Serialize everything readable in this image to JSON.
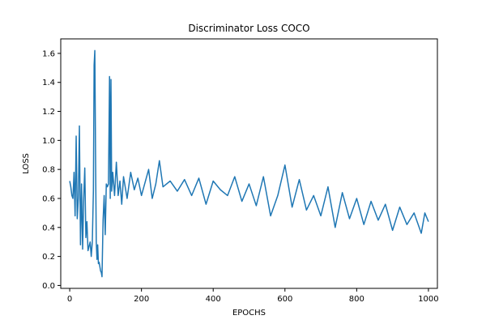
{
  "chart_data": {
    "type": "line",
    "title": "Discriminator Loss COCO",
    "xlabel": "EPOCHS",
    "ylabel": "LOSS",
    "xlim": [
      -25,
      1025
    ],
    "ylim": [
      -0.02,
      1.7
    ],
    "xticks": [
      0,
      200,
      400,
      600,
      800,
      1000
    ],
    "yticks": [
      0.0,
      0.2,
      0.4,
      0.6,
      0.8,
      1.0,
      1.2,
      1.4,
      1.6
    ],
    "ytick_labels": [
      "0.0",
      "0.2",
      "0.4",
      "0.6",
      "0.8",
      "1.0",
      "1.2",
      "1.4",
      "1.6"
    ],
    "grid": false,
    "series": [
      {
        "color": "#1f77b4",
        "x": [
          0,
          3,
          6,
          9,
          12,
          15,
          18,
          21,
          24,
          27,
          30,
          33,
          36,
          39,
          42,
          45,
          48,
          51,
          54,
          57,
          60,
          63,
          66,
          68,
          70,
          72,
          74,
          76,
          78,
          80,
          82,
          84,
          86,
          88,
          90,
          93,
          96,
          99,
          102,
          105,
          108,
          111,
          113,
          115,
          117,
          120,
          125,
          130,
          135,
          140,
          145,
          150,
          160,
          170,
          180,
          190,
          200,
          210,
          220,
          230,
          240,
          250,
          260,
          280,
          300,
          320,
          340,
          360,
          380,
          400,
          420,
          440,
          460,
          480,
          500,
          520,
          540,
          560,
          580,
          600,
          620,
          640,
          660,
          680,
          700,
          720,
          740,
          760,
          780,
          800,
          820,
          840,
          860,
          880,
          900,
          920,
          940,
          960,
          980,
          990,
          1000
        ],
        "y": [
          0.72,
          0.68,
          0.62,
          0.6,
          0.78,
          0.48,
          1.03,
          0.46,
          0.6,
          1.1,
          0.28,
          0.7,
          0.25,
          0.6,
          0.81,
          0.33,
          0.44,
          0.24,
          0.27,
          0.3,
          0.2,
          0.3,
          0.65,
          1.52,
          1.62,
          0.9,
          0.3,
          0.18,
          0.28,
          0.15,
          0.16,
          0.13,
          0.1,
          0.09,
          0.06,
          0.45,
          0.62,
          0.35,
          0.7,
          0.68,
          0.7,
          1.44,
          0.6,
          1.42,
          0.65,
          0.78,
          0.62,
          0.85,
          0.62,
          0.72,
          0.56,
          0.75,
          0.6,
          0.78,
          0.66,
          0.74,
          0.62,
          0.71,
          0.8,
          0.6,
          0.7,
          0.86,
          0.68,
          0.72,
          0.65,
          0.73,
          0.62,
          0.74,
          0.56,
          0.72,
          0.66,
          0.62,
          0.75,
          0.58,
          0.7,
          0.55,
          0.75,
          0.48,
          0.62,
          0.83,
          0.54,
          0.73,
          0.52,
          0.62,
          0.48,
          0.68,
          0.4,
          0.64,
          0.46,
          0.6,
          0.42,
          0.58,
          0.45,
          0.56,
          0.38,
          0.54,
          0.42,
          0.5,
          0.36,
          0.5,
          0.44
        ]
      }
    ]
  }
}
